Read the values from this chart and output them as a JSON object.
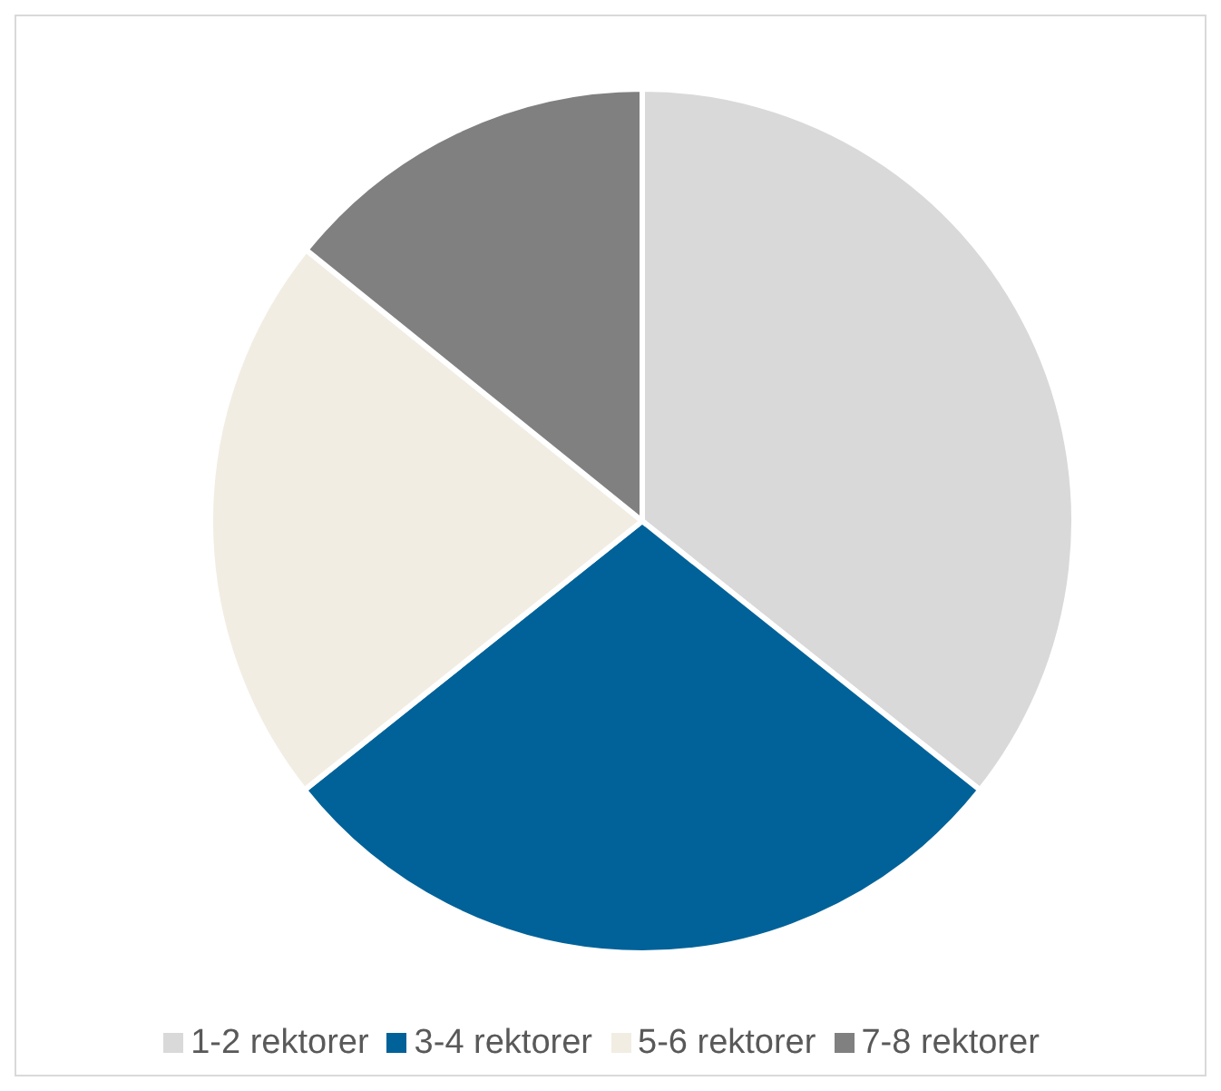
{
  "chart_data": {
    "type": "pie",
    "categories": [
      "1-2 rektorer",
      "3-4 rektorer",
      "5-6 rektorer",
      "7-8 rektorer"
    ],
    "values": [
      35.7,
      28.6,
      21.5,
      14.2
    ],
    "colors": [
      "#d9d9d9",
      "#006299",
      "#f2ede3",
      "#808080"
    ],
    "legend": "bottom"
  }
}
